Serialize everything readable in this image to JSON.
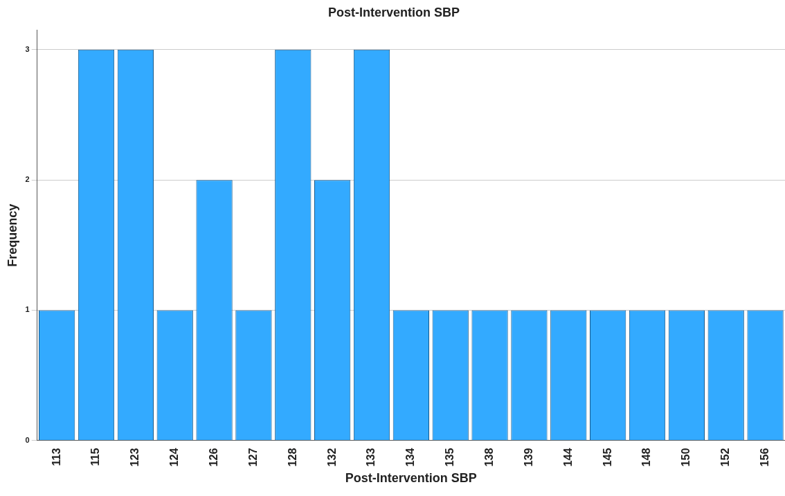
{
  "chart_data": {
    "type": "bar",
    "title": "Post-Intervention SBP",
    "xlabel": "Post-Intervention SBP",
    "ylabel": "Frequency",
    "categories": [
      "113",
      "115",
      "123",
      "124",
      "126",
      "127",
      "128",
      "132",
      "133",
      "134",
      "135",
      "138",
      "139",
      "144",
      "145",
      "148",
      "150",
      "152",
      "156"
    ],
    "values": [
      1,
      3,
      3,
      1,
      2,
      1,
      3,
      2,
      3,
      1,
      1,
      1,
      1,
      1,
      1,
      1,
      1,
      1,
      1
    ],
    "color": "#33aaff",
    "ylim": [
      0,
      3.15
    ],
    "yticks": [
      0,
      1,
      2,
      3
    ],
    "grid": "y",
    "legend": false
  }
}
